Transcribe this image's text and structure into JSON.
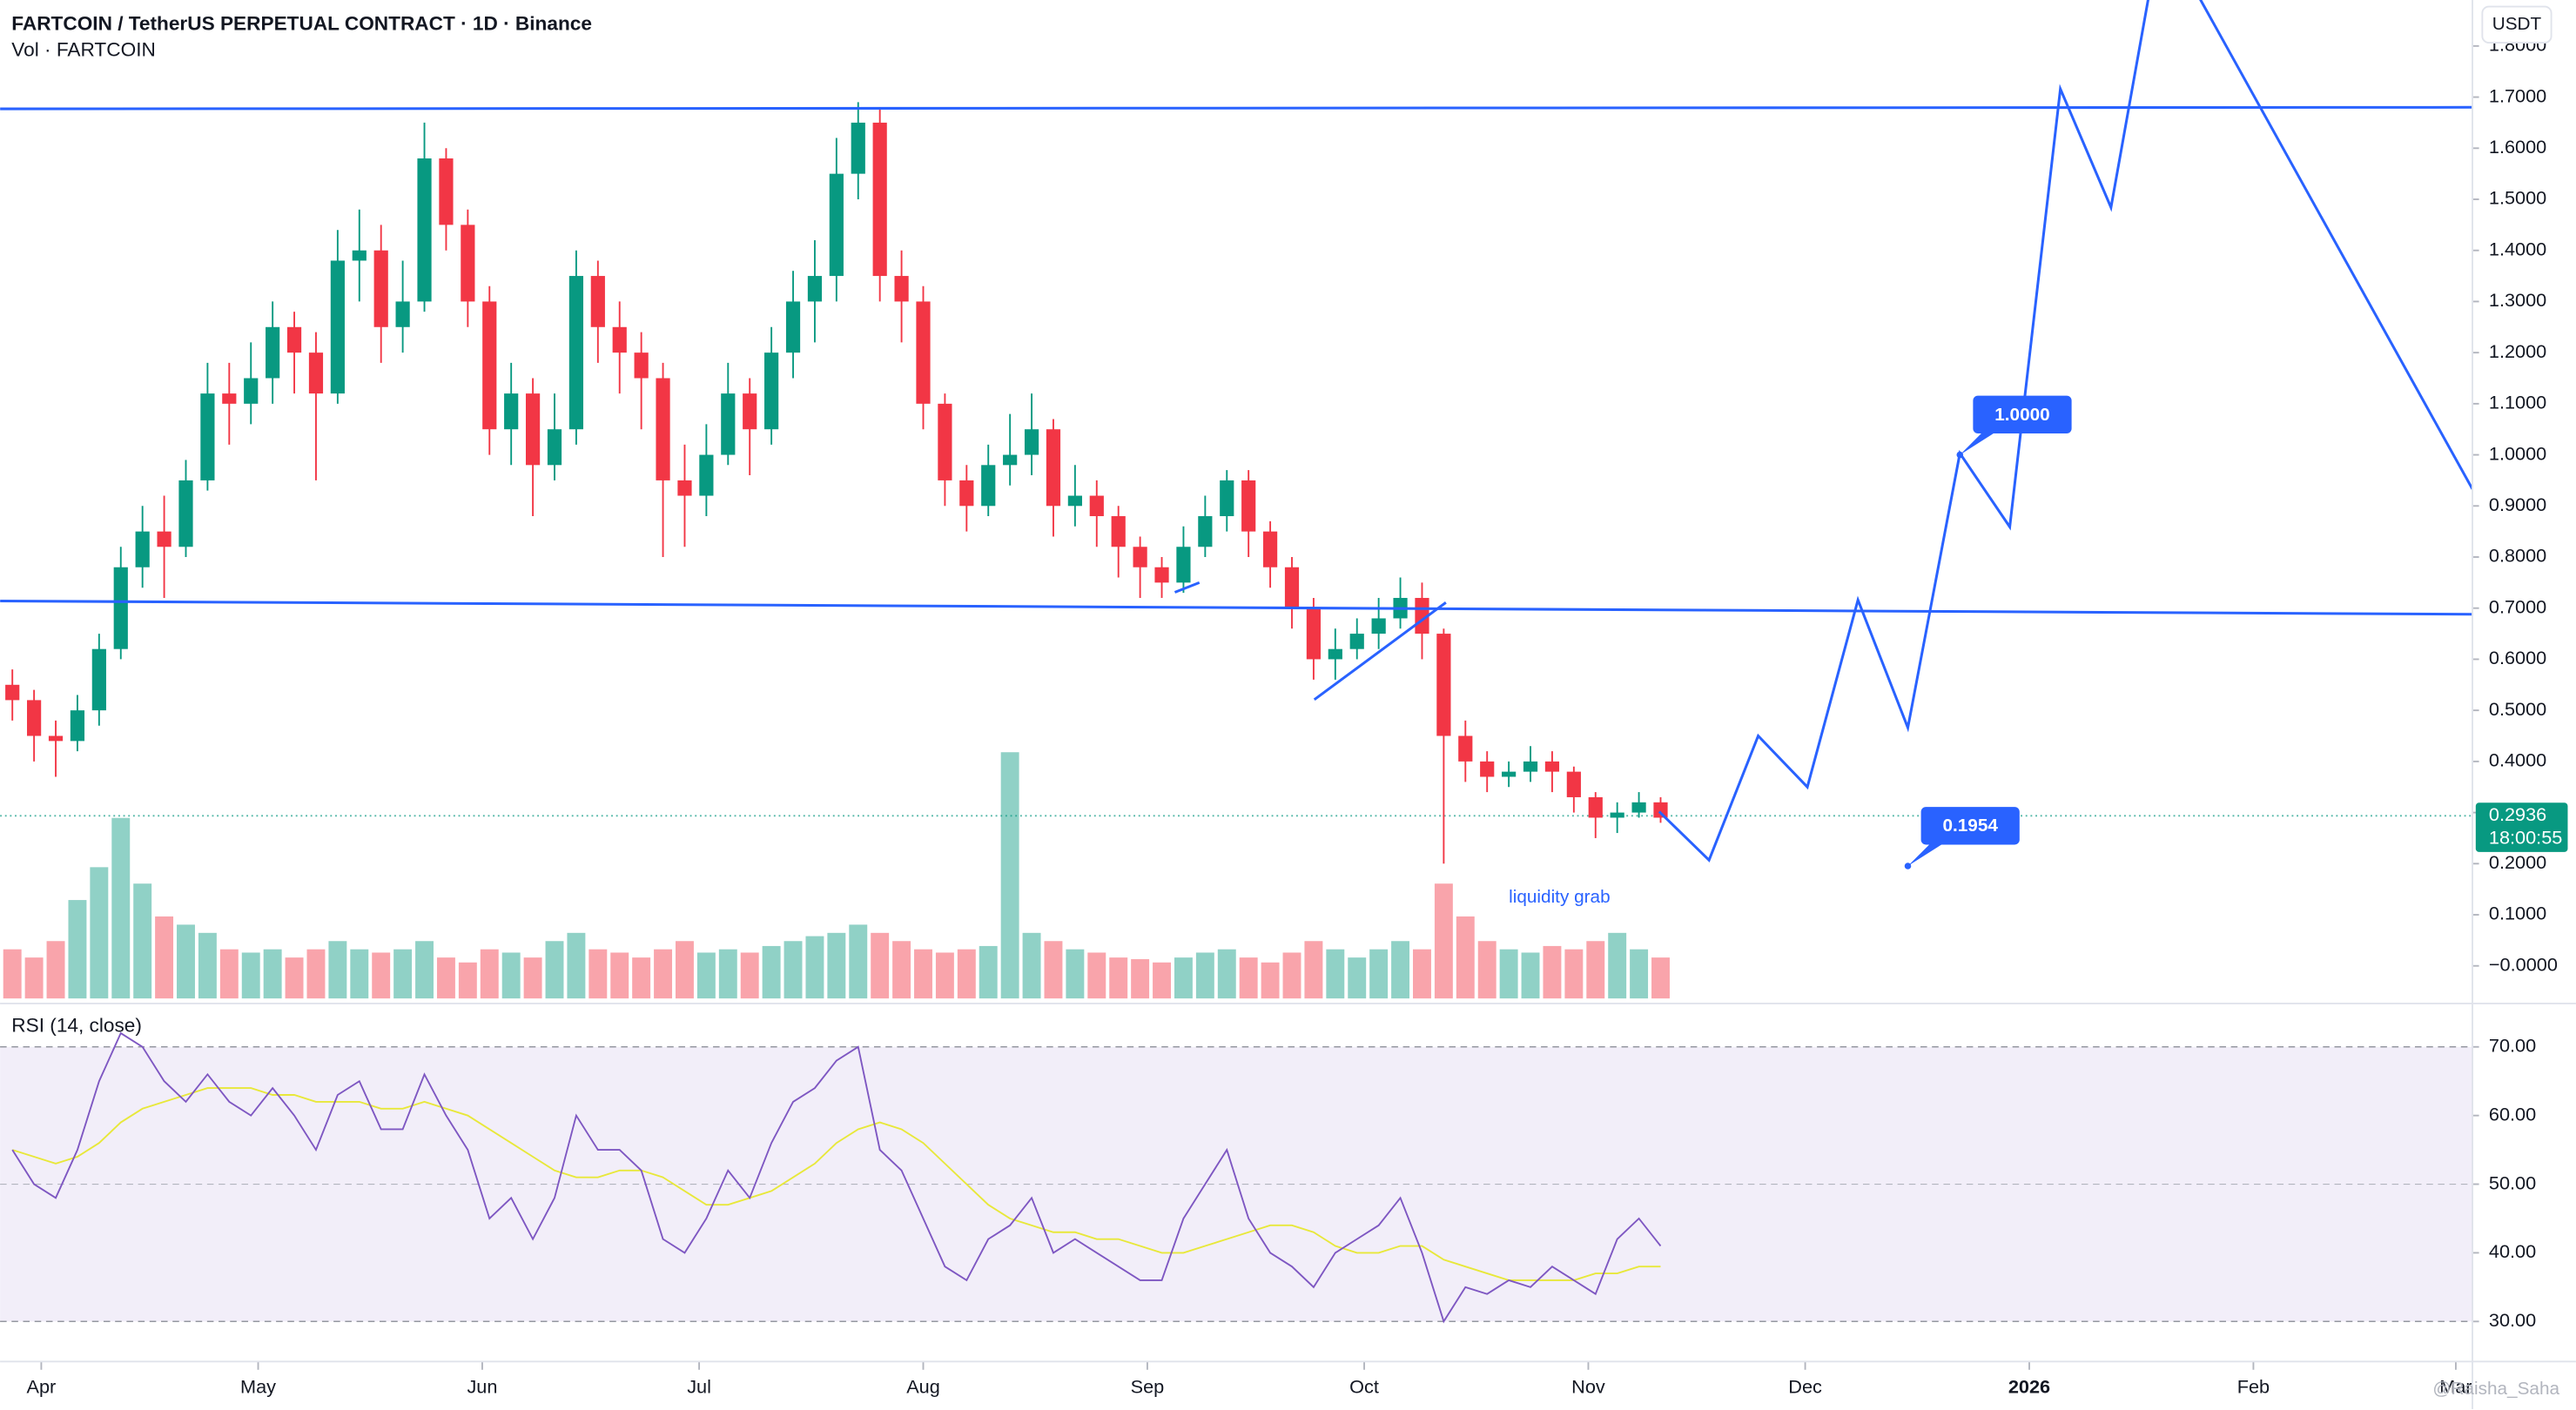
{
  "chart_data": [
    {
      "type": "candlestick",
      "title": "FARTCOIN / TetherUS PERPETUAL CONTRACT · 1D · Binance",
      "subtitle": "Vol · FARTCOIN",
      "currency": "USDT",
      "x": [
        -4,
        -1,
        2,
        5,
        8,
        11,
        14,
        17,
        20,
        23,
        26,
        29,
        32,
        35,
        38,
        41,
        44,
        47,
        50,
        53,
        56,
        59,
        62,
        65,
        68,
        71,
        74,
        77,
        80,
        83,
        86,
        89,
        92,
        95,
        98,
        101,
        104,
        107,
        110,
        113,
        116,
        119,
        122,
        125,
        128,
        131,
        134,
        137,
        140,
        143,
        146,
        149,
        152,
        155,
        158,
        161,
        164,
        167,
        170,
        173,
        176,
        179,
        182,
        185,
        188,
        191,
        194,
        197,
        200,
        203,
        206,
        209,
        212,
        215,
        218,
        221,
        224
      ],
      "open": [
        0.55,
        0.52,
        0.45,
        0.44,
        0.5,
        0.62,
        0.78,
        0.85,
        0.82,
        0.95,
        1.12,
        1.1,
        1.15,
        1.25,
        1.2,
        1.12,
        1.38,
        1.4,
        1.25,
        1.3,
        1.58,
        1.45,
        1.3,
        1.05,
        1.12,
        0.98,
        1.05,
        1.35,
        1.25,
        1.2,
        1.15,
        0.95,
        0.92,
        1.0,
        1.12,
        1.05,
        1.2,
        1.3,
        1.35,
        1.55,
        1.65,
        1.35,
        1.3,
        1.1,
        0.95,
        0.9,
        0.98,
        1.0,
        1.05,
        0.9,
        0.92,
        0.88,
        0.82,
        0.78,
        0.75,
        0.82,
        0.88,
        0.95,
        0.85,
        0.78,
        0.7,
        0.6,
        0.62,
        0.65,
        0.68,
        0.72,
        0.65,
        0.45,
        0.4,
        0.37,
        0.38,
        0.4,
        0.38,
        0.33,
        0.29,
        0.3,
        0.32
      ],
      "high": [
        0.58,
        0.54,
        0.48,
        0.53,
        0.65,
        0.82,
        0.9,
        0.92,
        0.99,
        1.18,
        1.18,
        1.22,
        1.3,
        1.28,
        1.24,
        1.44,
        1.48,
        1.45,
        1.38,
        1.65,
        1.6,
        1.48,
        1.33,
        1.18,
        1.15,
        1.12,
        1.4,
        1.38,
        1.3,
        1.24,
        1.18,
        1.02,
        1.06,
        1.18,
        1.15,
        1.25,
        1.36,
        1.42,
        1.62,
        1.69,
        1.68,
        1.4,
        1.33,
        1.12,
        0.98,
        1.02,
        1.08,
        1.12,
        1.07,
        0.98,
        0.95,
        0.9,
        0.84,
        0.8,
        0.86,
        0.92,
        0.97,
        0.97,
        0.87,
        0.8,
        0.72,
        0.66,
        0.68,
        0.72,
        0.76,
        0.75,
        0.66,
        0.48,
        0.42,
        0.4,
        0.43,
        0.42,
        0.39,
        0.34,
        0.32,
        0.34,
        0.33
      ],
      "low": [
        0.48,
        0.4,
        0.37,
        0.42,
        0.47,
        0.6,
        0.74,
        0.72,
        0.8,
        0.93,
        1.02,
        1.06,
        1.1,
        1.12,
        0.95,
        1.1,
        1.3,
        1.18,
        1.2,
        1.28,
        1.4,
        1.25,
        1.0,
        0.98,
        0.88,
        0.95,
        1.02,
        1.18,
        1.12,
        1.05,
        0.8,
        0.82,
        0.88,
        0.98,
        0.96,
        1.02,
        1.15,
        1.22,
        1.3,
        1.5,
        1.3,
        1.22,
        1.05,
        0.9,
        0.85,
        0.88,
        0.94,
        0.96,
        0.84,
        0.86,
        0.82,
        0.76,
        0.72,
        0.72,
        0.73,
        0.8,
        0.85,
        0.8,
        0.74,
        0.66,
        0.56,
        0.56,
        0.6,
        0.62,
        0.66,
        0.6,
        0.2,
        0.36,
        0.34,
        0.35,
        0.36,
        0.34,
        0.3,
        0.25,
        0.26,
        0.29,
        0.28
      ],
      "close": [
        0.52,
        0.45,
        0.44,
        0.5,
        0.62,
        0.78,
        0.85,
        0.82,
        0.95,
        1.12,
        1.1,
        1.15,
        1.25,
        1.2,
        1.12,
        1.38,
        1.4,
        1.25,
        1.3,
        1.58,
        1.45,
        1.3,
        1.05,
        1.12,
        0.98,
        1.05,
        1.35,
        1.25,
        1.2,
        1.15,
        0.95,
        0.92,
        1.0,
        1.12,
        1.05,
        1.2,
        1.3,
        1.35,
        1.55,
        1.65,
        1.35,
        1.3,
        1.1,
        0.95,
        0.9,
        0.98,
        1.0,
        1.05,
        0.9,
        0.92,
        0.88,
        0.82,
        0.78,
        0.75,
        0.82,
        0.88,
        0.95,
        0.85,
        0.78,
        0.7,
        0.6,
        0.62,
        0.65,
        0.68,
        0.72,
        0.65,
        0.45,
        0.4,
        0.37,
        0.38,
        0.4,
        0.38,
        0.33,
        0.29,
        0.3,
        0.32,
        0.29
      ],
      "volume": [
        30,
        25,
        35,
        60,
        80,
        110,
        70,
        50,
        45,
        40,
        30,
        28,
        30,
        25,
        30,
        35,
        30,
        28,
        30,
        35,
        25,
        22,
        30,
        28,
        25,
        35,
        40,
        30,
        28,
        25,
        30,
        35,
        28,
        30,
        28,
        32,
        35,
        38,
        40,
        45,
        40,
        35,
        30,
        28,
        30,
        32,
        150,
        40,
        35,
        30,
        28,
        25,
        24,
        22,
        25,
        28,
        30,
        25,
        22,
        28,
        35,
        30,
        25,
        30,
        35,
        30,
        70,
        50,
        35,
        30,
        28,
        32,
        30,
        35,
        40,
        30,
        25
      ],
      "volume_ylim": [
        0,
        160
      ],
      "up_color": "#089981",
      "down_color": "#f23645",
      "xlim": [
        -5.7,
        336.3
      ],
      "xticks": [
        {
          "value": 0,
          "label": "Apr"
        },
        {
          "value": 30,
          "label": "May"
        },
        {
          "value": 61,
          "label": "Jun"
        },
        {
          "value": 91,
          "label": "Jul"
        },
        {
          "value": 122,
          "label": "Aug"
        },
        {
          "value": 153,
          "label": "Sep"
        },
        {
          "value": 183,
          "label": "Oct"
        },
        {
          "value": 214,
          "label": "Nov"
        },
        {
          "value": 244,
          "label": "Dec"
        },
        {
          "value": 275,
          "label": "2026"
        },
        {
          "value": 306,
          "label": "Feb"
        },
        {
          "value": 334,
          "label": "Mar"
        }
      ],
      "ylim": [
        -0.064,
        1.89
      ],
      "yticks": [
        {
          "value": 0,
          "label": "−0.0000"
        },
        {
          "value": 0.1,
          "label": "0.1000"
        },
        {
          "value": 0.2,
          "label": "0.2000"
        },
        {
          "value": 0.3,
          "label": "0.3000"
        },
        {
          "value": 0.4,
          "label": "0.4000"
        },
        {
          "value": 0.5,
          "label": "0.5000"
        },
        {
          "value": 0.6,
          "label": "0.6000"
        },
        {
          "value": 0.7,
          "label": "0.7000"
        },
        {
          "value": 0.8,
          "label": "0.8000"
        },
        {
          "value": 0.9,
          "label": "0.9000"
        },
        {
          "value": 1,
          "label": "1.0000"
        },
        {
          "value": 1.1,
          "label": "1.1000"
        },
        {
          "value": 1.2,
          "label": "1.2000"
        },
        {
          "value": 1.3,
          "label": "1.3000"
        },
        {
          "value": 1.4,
          "label": "1.4000"
        },
        {
          "value": 1.5,
          "label": "1.5000"
        },
        {
          "value": 1.6,
          "label": "1.6000"
        },
        {
          "value": 1.7,
          "label": "1.7000"
        },
        {
          "value": 1.8,
          "label": "1.8000"
        }
      ],
      "last_price": 0.2936,
      "countdown": "18:00:55",
      "drawing_color": "#2962ff",
      "drawings": [
        {
          "points": [
            [
              -5.7,
              1.677
            ],
            [
              336.3,
              1.68
            ]
          ]
        },
        {
          "points": [
            [
              -5.7,
              0.714
            ],
            [
              336.3,
              0.688
            ]
          ]
        },
        {
          "points": [
            [
              176.1,
              0.521
            ],
            [
              194.3,
              0.711
            ]
          ]
        },
        {
          "points": [
            [
              156.8,
              0.731
            ],
            [
              160.2,
              0.75
            ]
          ]
        },
        {
          "points": [
            [
              223.8,
              0.302
            ],
            [
              230.7,
              0.207
            ],
            [
              237.5,
              0.45
            ],
            [
              244.3,
              0.35
            ],
            [
              251.3,
              0.716
            ],
            [
              258.2,
              0.466
            ],
            [
              265.4,
              1.003
            ],
            [
              272.3,
              0.859
            ],
            [
              279.3,
              1.716
            ],
            [
              286.3,
              1.484
            ],
            [
              293.2,
              2.03
            ],
            [
              336.3,
              0.933
            ]
          ]
        }
      ],
      "price_labels": [
        {
          "value": 1,
          "label": "1.0000",
          "x": 265.4
        },
        {
          "value": 0.1954,
          "x": 258.2
        }
      ],
      "annotations": [
        {
          "text": "liquidity grab",
          "x": 203,
          "y": 0.133
        }
      ],
      "watermark": "@Raisha_Saha"
    },
    {
      "type": "line",
      "title": "RSI (14, close)",
      "series": [
        {
          "color": "#7e57c2",
          "values": [
            55,
            50,
            48,
            55,
            65,
            72,
            70,
            65,
            62,
            66,
            62,
            60,
            64,
            60,
            55,
            63,
            65,
            58,
            58,
            66,
            60,
            55,
            45,
            48,
            42,
            48,
            60,
            55,
            55,
            52,
            42,
            40,
            45,
            52,
            48,
            56,
            62,
            64,
            68,
            70,
            55,
            52,
            45,
            38,
            36,
            42,
            44,
            48,
            40,
            42,
            40,
            38,
            36,
            36,
            45,
            50,
            55,
            45,
            40,
            38,
            35,
            40,
            42,
            44,
            48,
            40,
            30,
            35,
            34,
            36,
            35,
            38,
            36,
            34,
            42,
            45,
            41
          ]
        },
        {
          "color": "#e8e83a",
          "values": [
            55,
            54,
            53,
            54,
            56,
            59,
            61,
            62,
            63,
            64,
            64,
            64,
            63,
            63,
            62,
            62,
            62,
            61,
            61,
            62,
            61,
            60,
            58,
            56,
            54,
            52,
            51,
            51,
            52,
            52,
            51,
            49,
            47,
            47,
            48,
            49,
            51,
            53,
            56,
            58,
            59,
            58,
            56,
            53,
            50,
            47,
            45,
            44,
            43,
            43,
            42,
            42,
            41,
            40,
            40,
            41,
            42,
            43,
            44,
            44,
            43,
            41,
            40,
            40,
            41,
            41,
            39,
            38,
            37,
            36,
            36,
            36,
            36,
            37,
            37,
            38,
            38
          ]
        }
      ],
      "ylim": [
        24.4,
        75.6
      ],
      "yticks": [
        {
          "value": 30,
          "label": "30.00"
        },
        {
          "value": 40,
          "label": "40.00"
        },
        {
          "value": 50,
          "label": "50.00"
        },
        {
          "value": 60,
          "label": "60.00"
        },
        {
          "value": 70,
          "label": "70.00"
        }
      ],
      "band": [
        30,
        70
      ],
      "band_color": "#7e57c2"
    }
  ]
}
